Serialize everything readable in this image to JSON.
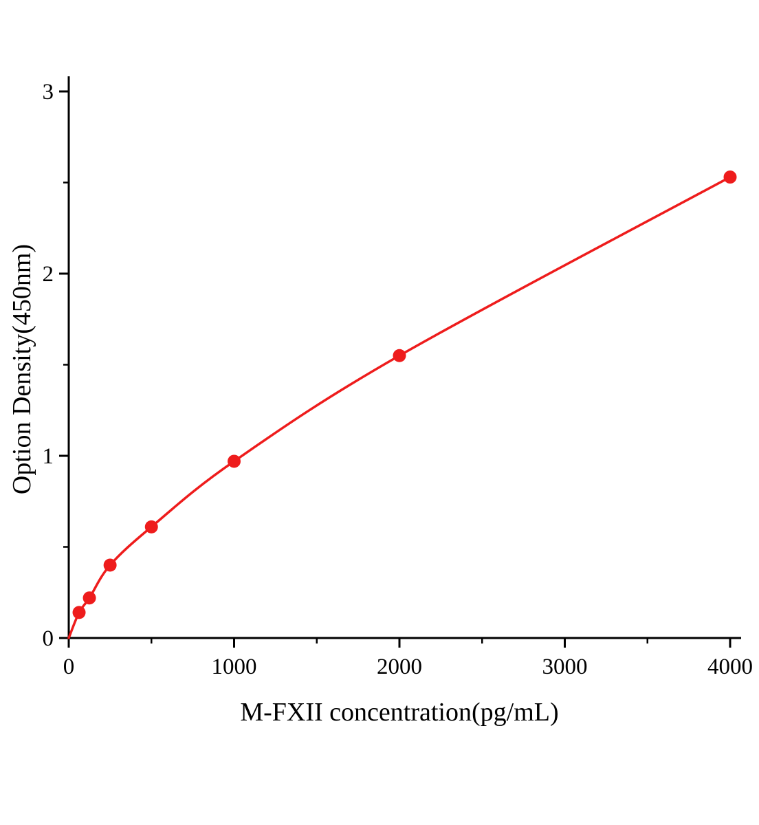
{
  "chart_data": {
    "type": "line",
    "title": "",
    "xlabel": "M-FXII concentration(pg/mL)",
    "ylabel": "Option Density(450nm)",
    "x": [
      62.5,
      125,
      250,
      500,
      1000,
      2000,
      4000
    ],
    "y": [
      0.14,
      0.22,
      0.4,
      0.61,
      0.97,
      1.55,
      2.53
    ],
    "curve_origin": [
      0,
      0
    ],
    "xlim": [
      0,
      4000
    ],
    "ylim": [
      0,
      3
    ],
    "x_major_ticks": [
      0,
      1000,
      2000,
      3000,
      4000
    ],
    "x_minor_ticks": [
      500,
      1500,
      2500,
      3500
    ],
    "y_major_ticks": [
      0,
      1,
      2,
      3
    ],
    "y_minor_ticks": [
      0.5,
      1.5,
      2.5
    ],
    "grid": false,
    "legend": "none",
    "line_color": "#ee1c1c",
    "marker_color": "#ee1c1c",
    "axis_color": "#000000"
  }
}
